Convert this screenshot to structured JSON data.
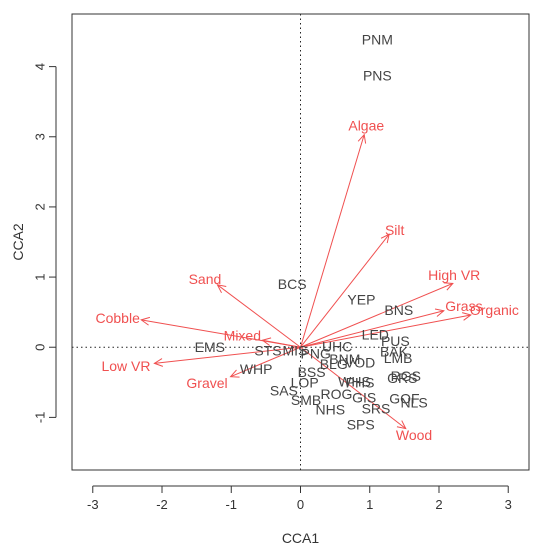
{
  "colors": {
    "env": "#f05050",
    "species": "#444444",
    "axis": "#333333"
  },
  "chart_data": {
    "type": "scatter",
    "title": "",
    "xlabel": "CCA1",
    "ylabel": "CCA2",
    "xlim": [
      -3.3,
      3.3
    ],
    "ylim": [
      -1.75,
      4.75
    ],
    "xticks": [
      -3,
      -2,
      -1,
      0,
      1,
      2,
      3
    ],
    "yticks": [
      -1,
      0,
      1,
      2,
      3,
      4
    ],
    "grid": false,
    "reference_lines": {
      "x": 0,
      "y": 0,
      "style": "dotted"
    },
    "species": [
      {
        "label": "PNM",
        "x": 1.11,
        "y": 4.39
      },
      {
        "label": "PNS",
        "x": 1.11,
        "y": 3.87
      },
      {
        "label": "BCS",
        "x": -0.12,
        "y": 0.9
      },
      {
        "label": "YEP",
        "x": 0.88,
        "y": 0.68
      },
      {
        "label": "BNS",
        "x": 1.42,
        "y": 0.53
      },
      {
        "label": "LED",
        "x": 1.08,
        "y": 0.18
      },
      {
        "label": "PUS",
        "x": 1.37,
        "y": 0.09
      },
      {
        "label": "UHC",
        "x": 0.53,
        "y": 0.01
      },
      {
        "label": "EMS",
        "x": -1.31,
        "y": 0.0
      },
      {
        "label": "STS",
        "x": -0.47,
        "y": -0.05
      },
      {
        "label": "MIS",
        "x": -0.08,
        "y": -0.05
      },
      {
        "label": "PNG",
        "x": 0.22,
        "y": -0.09
      },
      {
        "label": "BAK",
        "x": 1.35,
        "y": -0.06
      },
      {
        "label": "LMB",
        "x": 1.41,
        "y": -0.15
      },
      {
        "label": "BNM",
        "x": 0.64,
        "y": -0.17
      },
      {
        "label": "VOD",
        "x": 0.86,
        "y": -0.22
      },
      {
        "label": "BLG",
        "x": 0.48,
        "y": -0.24
      },
      {
        "label": "WHP",
        "x": -0.64,
        "y": -0.31
      },
      {
        "label": "BSS",
        "x": 0.16,
        "y": -0.35
      },
      {
        "label": "RGS",
        "x": 1.52,
        "y": -0.41
      },
      {
        "label": "GRS",
        "x": 1.47,
        "y": -0.44
      },
      {
        "label": "WHS",
        "x": 0.78,
        "y": -0.49
      },
      {
        "label": "PHS",
        "x": 0.86,
        "y": -0.5
      },
      {
        "label": "LOP",
        "x": 0.06,
        "y": -0.5
      },
      {
        "label": "SAS",
        "x": -0.24,
        "y": -0.62
      },
      {
        "label": "ROG",
        "x": 0.52,
        "y": -0.67
      },
      {
        "label": "GIS",
        "x": 0.92,
        "y": -0.72
      },
      {
        "label": "SMB",
        "x": 0.08,
        "y": -0.75
      },
      {
        "label": "GOF",
        "x": 1.5,
        "y": -0.73
      },
      {
        "label": "NLS",
        "x": 1.64,
        "y": -0.79
      },
      {
        "label": "SRS",
        "x": 1.09,
        "y": -0.87
      },
      {
        "label": "NHS",
        "x": 0.43,
        "y": -0.89
      },
      {
        "label": "SPS",
        "x": 0.87,
        "y": -1.1
      }
    ],
    "env_vectors": [
      {
        "label": "Algae",
        "x": 0.92,
        "y": 3.03,
        "label_x": 0.95,
        "label_y": 3.16
      },
      {
        "label": "Silt",
        "x": 1.28,
        "y": 1.61,
        "label_x": 1.36,
        "label_y": 1.67
      },
      {
        "label": "High VR",
        "x": 2.2,
        "y": 0.91,
        "label_x": 2.22,
        "label_y": 1.03
      },
      {
        "label": "Grass",
        "x": 2.07,
        "y": 0.52,
        "label_x": 2.36,
        "label_y": 0.59
      },
      {
        "label": "Organic",
        "x": 2.46,
        "y": 0.46,
        "label_x": 2.8,
        "label_y": 0.53
      },
      {
        "label": "Wood",
        "x": 1.52,
        "y": -1.16,
        "label_x": 1.64,
        "label_y": -1.25
      },
      {
        "label": "Sand",
        "x": -1.2,
        "y": 0.89,
        "label_x": -1.38,
        "label_y": 0.97
      },
      {
        "label": "Cobble",
        "x": -2.3,
        "y": 0.39,
        "label_x": -2.64,
        "label_y": 0.42
      },
      {
        "label": "Mixed",
        "x": -0.55,
        "y": 0.1,
        "label_x": -0.84,
        "label_y": 0.17
      },
      {
        "label": "Low VR",
        "x": -2.11,
        "y": -0.23,
        "label_x": -2.52,
        "label_y": -0.27
      },
      {
        "label": "Gravel",
        "x": -1.01,
        "y": -0.42,
        "label_x": -1.35,
        "label_y": -0.51
      }
    ]
  }
}
